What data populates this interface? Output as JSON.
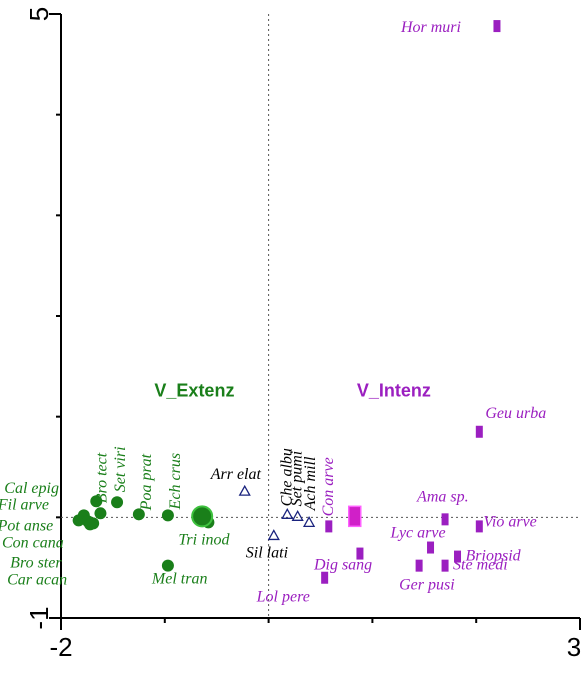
{
  "chart_data": {
    "type": "scatter",
    "title": "",
    "xlabel": "",
    "ylabel": "",
    "xlim": [
      -2,
      3
    ],
    "ylim": [
      -1,
      5
    ],
    "x_tick_labels": [
      "-2",
      "3"
    ],
    "y_tick_labels": [
      "5",
      "-1"
    ],
    "grid": false,
    "zero_lines": true,
    "group_labels": [
      {
        "text": "V_Extenz",
        "x": -1.1,
        "y": 1.2,
        "color": "#1a7f1a"
      },
      {
        "text": "V_Intenz",
        "x": 0.85,
        "y": 1.2,
        "color": "#9b1fc0"
      }
    ],
    "series": [
      {
        "name": "V_Extenz",
        "marker": "circle",
        "color": "#1a7f1a",
        "points": [
          {
            "label": "Cal epig",
            "x": -1.66,
            "y": 0.16
          },
          {
            "label": "Fil arve",
            "x": -1.78,
            "y": 0.02
          },
          {
            "label": "Pot anse",
            "x": -1.83,
            "y": -0.03
          },
          {
            "label": "Con cana",
            "x": -1.74,
            "y": -0.04
          },
          {
            "label": "Bro ster",
            "x": -1.69,
            "y": -0.06
          },
          {
            "label": "Car acan",
            "x": -1.72,
            "y": -0.07
          },
          {
            "label": "Bro tect",
            "x": -1.62,
            "y": 0.04
          },
          {
            "label": "Set viri",
            "x": -1.46,
            "y": 0.15
          },
          {
            "label": "Poa prat",
            "x": -1.25,
            "y": 0.03
          },
          {
            "label": "Ech crus",
            "x": -0.97,
            "y": 0.02
          },
          {
            "label": "Tri inod",
            "x": -0.58,
            "y": -0.05
          },
          {
            "label": "Mel tran",
            "x": -0.97,
            "y": -0.48
          }
        ],
        "centroid": {
          "label": "V_Extenz",
          "x": -0.64,
          "y": 0.01
        }
      },
      {
        "name": "",
        "marker": "triangle",
        "color": "#1a237e",
        "points": [
          {
            "label": "Arr elat",
            "x": -0.23,
            "y": 0.26
          },
          {
            "label": "Che albu",
            "x": 0.18,
            "y": 0.03
          },
          {
            "label": "Set pumi",
            "x": 0.28,
            "y": 0.01
          },
          {
            "label": "Ach mill",
            "x": 0.39,
            "y": -0.05
          },
          {
            "label": "Sil lati",
            "x": 0.05,
            "y": -0.18
          }
        ]
      },
      {
        "name": "V_Intenz",
        "marker": "square",
        "color": "#9b1fc0",
        "points": [
          {
            "label": "Hor muri",
            "x": 2.2,
            "y": 4.88
          },
          {
            "label": "Geu urba",
            "x": 2.03,
            "y": 0.85
          },
          {
            "label": "Con arve",
            "x": 0.58,
            "y": -0.09
          },
          {
            "label": "Ama sp.",
            "x": 1.7,
            "y": -0.02
          },
          {
            "label": "Vio arve",
            "x": 2.03,
            "y": -0.09
          },
          {
            "label": "Lyc arve",
            "x": 1.56,
            "y": -0.3
          },
          {
            "label": "Briopsid",
            "x": 1.82,
            "y": -0.39
          },
          {
            "label": "Ste medi",
            "x": 1.7,
            "y": -0.48
          },
          {
            "label": "Ger pusi",
            "x": 1.45,
            "y": -0.48
          },
          {
            "label": "Dig sang",
            "x": 0.88,
            "y": -0.36
          },
          {
            "label": "Lol pere",
            "x": 0.54,
            "y": -0.6
          }
        ],
        "centroid": {
          "label": "V_Intenz",
          "x": 0.83,
          "y": 0.01
        }
      }
    ]
  }
}
